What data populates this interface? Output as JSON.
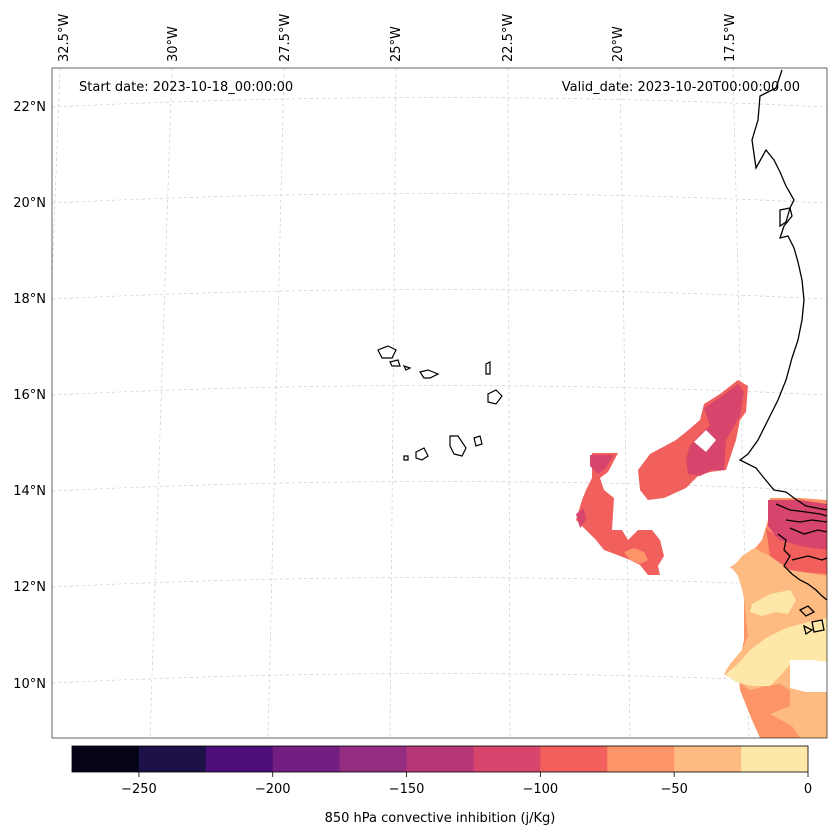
{
  "map": {
    "start_label": "Start date: 2023-10-18_00:00:00",
    "valid_label": "Valid_date: 2023-10-20T00:00:00.00",
    "lon_labels": [
      "32.5°W",
      "30°W",
      "27.5°W",
      "25°W",
      "22.5°W",
      "20°W",
      "17.5°W"
    ],
    "lat_labels": [
      "22°N",
      "20°N",
      "18°N",
      "16°N",
      "14°N",
      "12°N",
      "10°N"
    ]
  },
  "colorbar": {
    "label": "850 hPa convective inhibition (j/Kg)",
    "ticks": [
      "−250",
      "−200",
      "−150",
      "−100",
      "−50",
      "0"
    ],
    "bins": [
      {
        "from": -275,
        "to": -250,
        "color": "#050416"
      },
      {
        "from": -250,
        "to": -225,
        "color": "#1d1147"
      },
      {
        "from": -225,
        "to": -200,
        "color": "#4e0f7a"
      },
      {
        "from": -200,
        "to": -175,
        "color": "#721f81"
      },
      {
        "from": -175,
        "to": -150,
        "color": "#942c80"
      },
      {
        "from": -150,
        "to": -125,
        "color": "#b73779"
      },
      {
        "from": -125,
        "to": -100,
        "color": "#d8456c"
      },
      {
        "from": -100,
        "to": -75,
        "color": "#f1605d"
      },
      {
        "from": -75,
        "to": -50,
        "color": "#fd9468"
      },
      {
        "from": -50,
        "to": -25,
        "color": "#febb81"
      },
      {
        "from": -25,
        "to": 0,
        "color": "#fde7a9"
      }
    ]
  }
}
